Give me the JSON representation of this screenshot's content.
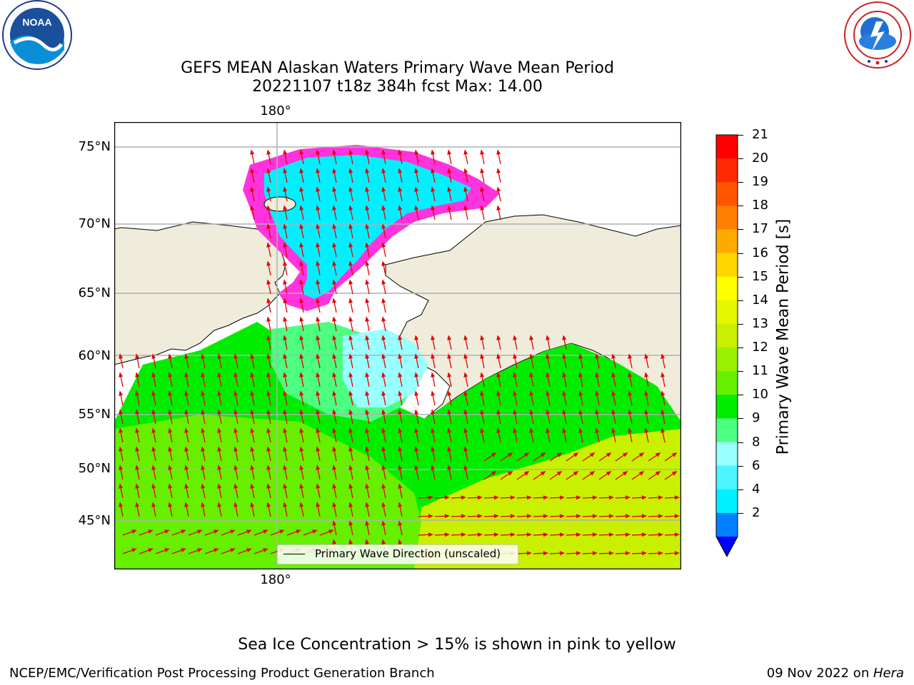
{
  "title": {
    "line1": "GEFS MEAN Alaskan Waters Primary Wave Mean Period",
    "line2": "20221107 t18z 384h fcst   Max: 14.00"
  },
  "map": {
    "lat_labels": [
      "75°N",
      "70°N",
      "65°N",
      "60°N",
      "55°N",
      "50°N",
      "45°N"
    ],
    "lon_label_top": "180°",
    "lon_label_bottom": "180°",
    "legend_label": "Primary Wave Direction (unscaled)",
    "colors": {
      "land": "#efecdc",
      "coast": "#000000",
      "arrow": "#e60000",
      "grid": "#b0b0b0",
      "sea_ice_pink": "#ff33dd",
      "sea_ice_yellow": "#f8d040"
    }
  },
  "colorbar": {
    "label": "Primary Wave Mean Period [s]",
    "ticks": [
      "21",
      "20",
      "19",
      "18",
      "17",
      "16",
      "15",
      "14",
      "13",
      "12",
      "11",
      "10",
      "9",
      "8",
      "6",
      "4",
      "2"
    ],
    "bands_top_to_bottom": [
      "#ff0000",
      "#ff2a00",
      "#ff5500",
      "#ff8000",
      "#ffaa00",
      "#ffd500",
      "#ffff00",
      "#e6f500",
      "#c8f000",
      "#99f000",
      "#66f000",
      "#00ec00",
      "#4cff80",
      "#99ffff",
      "#4df6ff",
      "#00f0ff",
      "#0080ff"
    ],
    "under_color": "#0000ff"
  },
  "notes": {
    "sea_ice": "Sea Ice Concentration > 15% is shown in pink to yellow"
  },
  "footer": {
    "left": "NCEP/EMC/Verification Post Processing Product Generation Branch",
    "right_date": "09 Nov 2022 on ",
    "right_host": "Hera"
  },
  "logos": {
    "noaa": "NOAA",
    "nws": "NATIONAL WEATHER SERVICE"
  }
}
